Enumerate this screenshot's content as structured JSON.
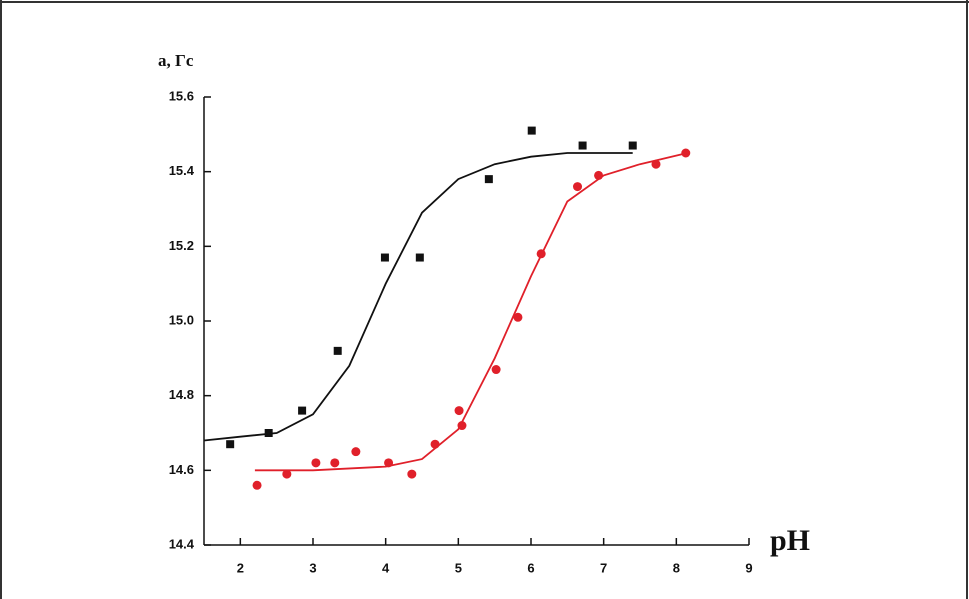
{
  "chart_data": {
    "type": "scatter",
    "y_label": "a, Гс",
    "x_label": "pH",
    "xlim": [
      1.5,
      9
    ],
    "xticks": [
      2,
      3,
      4,
      5,
      6,
      7,
      8,
      9
    ],
    "ylim": [
      14.4,
      15.6
    ],
    "yticks": [
      14.4,
      14.6,
      14.8,
      {
        "value": 15.0,
        "label": "15.0"
      },
      15.2,
      15.4,
      15.6
    ],
    "series": [
      {
        "color": "#111111",
        "marker": "square",
        "x": [
          1.86,
          2.39,
          2.85,
          3.34,
          3.99,
          4.47,
          5.42,
          6.01,
          6.71,
          7.4
        ],
        "values": [
          14.67,
          14.7,
          14.76,
          14.92,
          15.17,
          15.17,
          15.38,
          15.51,
          15.47,
          15.47
        ]
      },
      {
        "color": "#e0202a",
        "marker": "circle",
        "x": [
          2.23,
          2.64,
          3.04,
          3.3,
          3.59,
          4.04,
          4.36,
          4.68,
          5.01,
          5.05,
          5.52,
          5.82,
          6.14,
          6.64,
          6.93,
          7.72,
          8.13
        ],
        "values": [
          14.56,
          14.59,
          14.62,
          14.62,
          14.65,
          14.62,
          14.59,
          14.67,
          14.76,
          14.72,
          14.87,
          15.01,
          15.18,
          15.36,
          15.39,
          15.42,
          15.45
        ]
      }
    ],
    "fits": [
      {
        "color": "#111111",
        "x": [
          1.5,
          2,
          2.5,
          3,
          3.5,
          4,
          4.5,
          5,
          5.5,
          6,
          6.5,
          7,
          7.4
        ],
        "values": [
          14.68,
          14.69,
          14.7,
          14.75,
          14.88,
          15.1,
          15.29,
          15.38,
          15.42,
          15.44,
          15.45,
          15.45,
          15.45
        ]
      },
      {
        "color": "#e0202a",
        "x": [
          2.2,
          3,
          4,
          4.5,
          5,
          5.5,
          6,
          6.5,
          7,
          7.5,
          8.15
        ],
        "values": [
          14.6,
          14.6,
          14.61,
          14.63,
          14.71,
          14.9,
          15.12,
          15.32,
          15.39,
          15.42,
          15.45
        ]
      }
    ]
  }
}
